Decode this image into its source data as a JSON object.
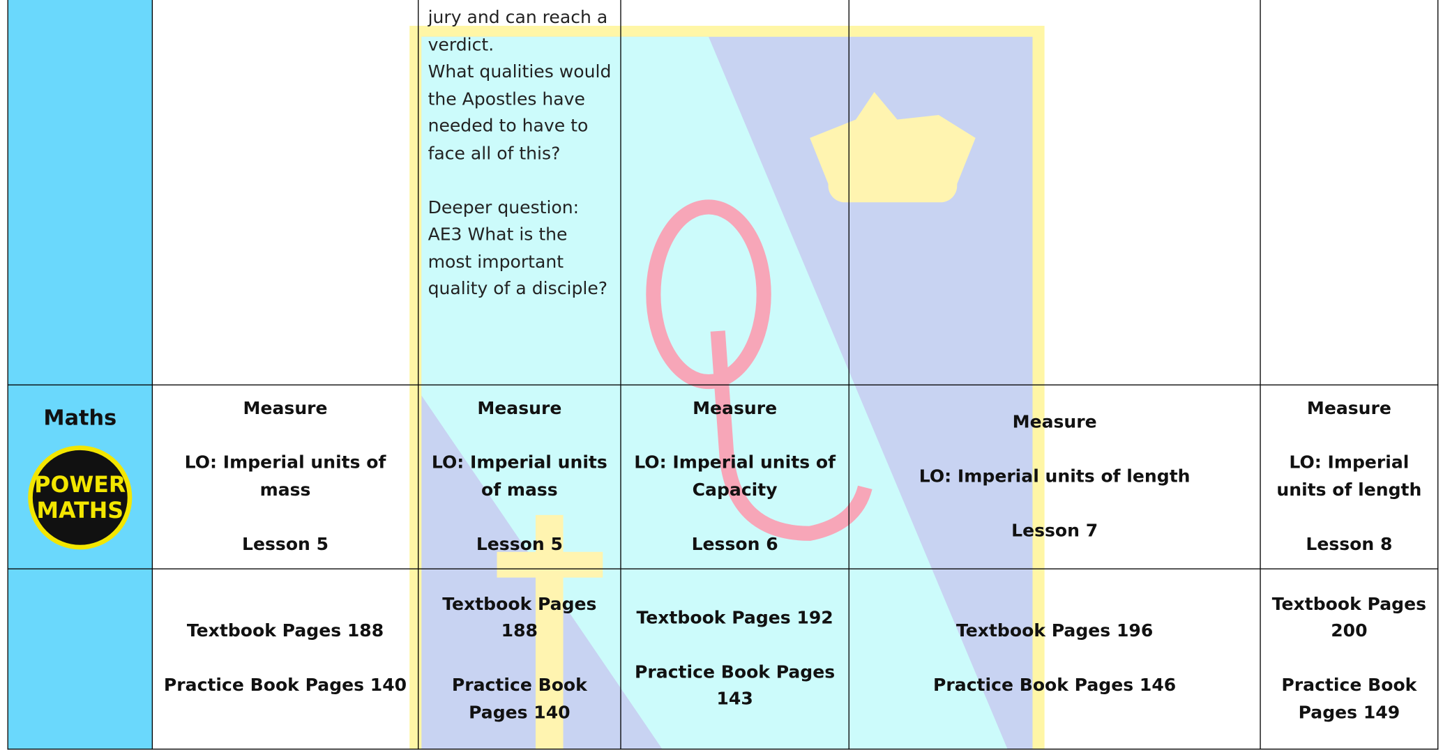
{
  "table": {
    "rows": [
      {
        "subject": null,
        "cells": [
          [],
          [
            [
              "jury and can reach a verdict.",
              "What qualities would the Apostles have needed to have to face all of this?"
            ],
            [
              "Deeper question: AE3 What is the most important quality of a disciple?"
            ]
          ],
          [],
          [],
          []
        ]
      },
      {
        "subject": "Maths",
        "logo": [
          "POWER",
          "MATHS"
        ],
        "cells": [
          [
            [
              "Measure"
            ],
            [
              "LO: Imperial units of mass"
            ],
            [
              "Lesson 5"
            ]
          ],
          [
            [
              "Measure"
            ],
            [
              "LO: Imperial units of mass"
            ],
            [
              "Lesson 5"
            ]
          ],
          [
            [
              "Measure"
            ],
            [
              "LO: Imperial units of Capacity"
            ],
            [
              "Lesson 6"
            ]
          ],
          [
            [
              "Measure"
            ],
            [
              "LO: Imperial units of length"
            ],
            [
              "Lesson 7"
            ]
          ],
          [
            [
              "Measure"
            ],
            [
              "LO: Imperial units of length"
            ],
            [
              "Lesson 8"
            ]
          ]
        ]
      },
      {
        "subject": null,
        "cells": [
          [
            [
              "Textbook Pages 188"
            ],
            [
              "Practice Book Pages 140"
            ]
          ],
          [
            [
              "Textbook Pages 188"
            ],
            [
              "Practice Book Pages 140"
            ]
          ],
          [
            [
              "Textbook Pages 192"
            ],
            [
              "Practice Book Pages 143"
            ]
          ],
          [
            [
              "Textbook Pages 196"
            ],
            [
              "Practice Book Pages 146"
            ]
          ],
          [
            [
              "Textbook Pages 200"
            ],
            [
              "Practice Book Pages 149"
            ]
          ]
        ]
      }
    ]
  }
}
